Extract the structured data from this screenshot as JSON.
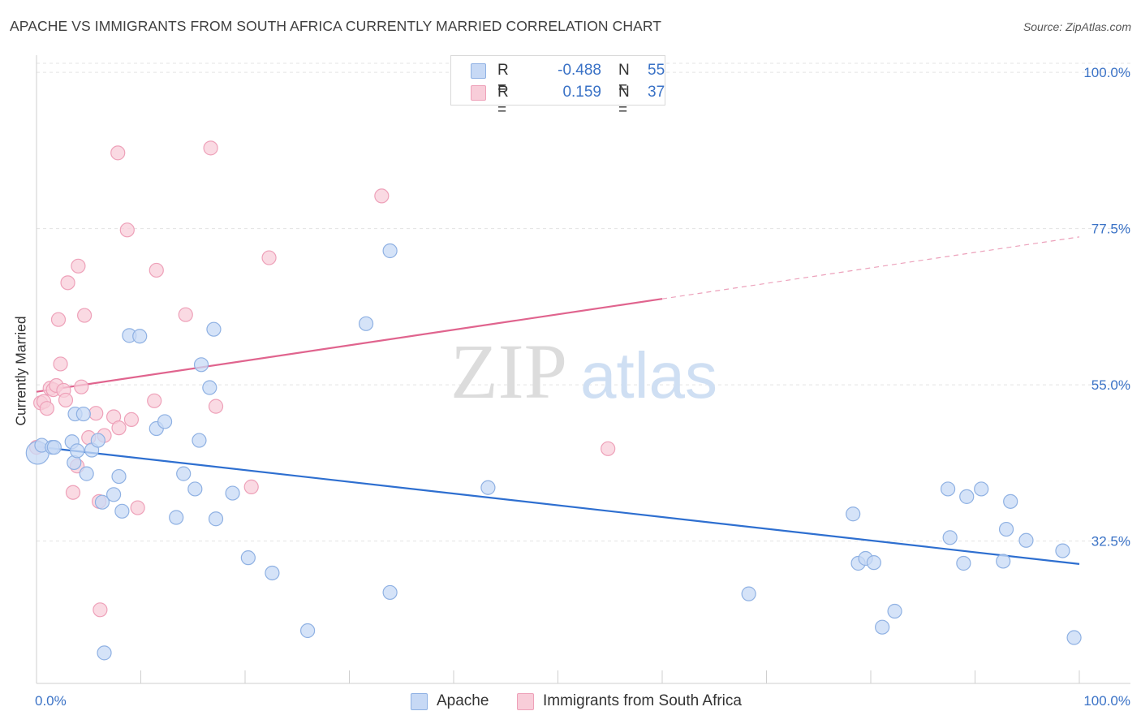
{
  "title": "APACHE VS IMMIGRANTS FROM SOUTH AFRICA CURRENTLY MARRIED CORRELATION CHART",
  "source": "Source: ZipAtlas.com",
  "watermark": {
    "zip": "ZIP",
    "atlas": "atlas"
  },
  "legend": {
    "rows": [
      {
        "r_label": "R =",
        "r_value": "-0.488",
        "n_label": "N =",
        "n_value": "55"
      },
      {
        "r_label": "R =",
        "r_value": "0.159",
        "n_label": "N =",
        "n_value": "37"
      }
    ]
  },
  "bottom_legend": {
    "apache": "Apache",
    "south_africa": "Immigrants from South Africa"
  },
  "colors": {
    "apache_fill": "#c7d9f5",
    "apache_stroke": "#8fb1e3",
    "apache_line": "#2e6fd0",
    "sa_fill": "#f8cdd9",
    "sa_stroke": "#eea1b9",
    "sa_line": "#e0648e",
    "tick_text": "#3a72c6",
    "grid": "#e3e3e3"
  },
  "chart_data": {
    "type": "scatter",
    "title": "APACHE VS IMMIGRANTS FROM SOUTH AFRICA CURRENTLY MARRIED CORRELATION CHART",
    "xlabel": "",
    "ylabel": "Currently Married",
    "xlim": [
      0,
      100
    ],
    "ylim": [
      12.0,
      102.0
    ],
    "x_tick_labels": [
      {
        "value": 0,
        "label": "0.0%"
      },
      {
        "value": 100,
        "label": "100.0%"
      }
    ],
    "y_tick_labels": [
      {
        "value": 100,
        "label": "100.0%"
      },
      {
        "value": 77.5,
        "label": "77.5%"
      },
      {
        "value": 55,
        "label": "55.0%"
      },
      {
        "value": 32.5,
        "label": "32.5%"
      }
    ],
    "grid": true,
    "legend_position": "top-center",
    "series": [
      {
        "name": "Apache",
        "stats": {
          "R": -0.488,
          "N": 55
        },
        "trend": {
          "x": [
            0,
            100
          ],
          "y": [
            46.1,
            29.2
          ],
          "solid_until_x": 100
        },
        "points": [
          [
            0.1,
            45.2
          ],
          [
            0.5,
            46.3
          ],
          [
            1.5,
            46.0
          ],
          [
            1.7,
            46.0
          ],
          [
            3.4,
            46.8
          ],
          [
            3.6,
            43.8
          ],
          [
            3.9,
            45.5
          ],
          [
            3.7,
            50.8
          ],
          [
            4.5,
            50.8
          ],
          [
            4.8,
            42.2
          ],
          [
            5.3,
            45.6
          ],
          [
            5.9,
            47.0
          ],
          [
            6.3,
            38.1
          ],
          [
            7.4,
            39.2
          ],
          [
            7.9,
            41.8
          ],
          [
            8.2,
            36.8
          ],
          [
            8.9,
            62.1
          ],
          [
            9.9,
            62.0
          ],
          [
            11.5,
            48.7
          ],
          [
            12.3,
            49.7
          ],
          [
            13.4,
            35.9
          ],
          [
            14.1,
            42.2
          ],
          [
            15.2,
            40.0
          ],
          [
            15.6,
            47.0
          ],
          [
            15.8,
            57.9
          ],
          [
            16.6,
            54.6
          ],
          [
            17.0,
            63.0
          ],
          [
            17.2,
            35.7
          ],
          [
            18.8,
            39.4
          ],
          [
            20.3,
            30.1
          ],
          [
            22.6,
            27.9
          ],
          [
            26.0,
            19.6
          ],
          [
            31.6,
            63.8
          ],
          [
            33.9,
            74.3
          ],
          [
            33.9,
            25.1
          ],
          [
            43.3,
            40.2
          ],
          [
            68.3,
            24.9
          ],
          [
            78.3,
            36.4
          ],
          [
            78.8,
            29.3
          ],
          [
            79.5,
            30.0
          ],
          [
            80.3,
            29.4
          ],
          [
            81.1,
            20.1
          ],
          [
            82.3,
            22.4
          ],
          [
            87.4,
            40.0
          ],
          [
            87.6,
            33.0
          ],
          [
            88.9,
            29.3
          ],
          [
            89.2,
            38.9
          ],
          [
            90.6,
            40.0
          ],
          [
            92.7,
            29.6
          ],
          [
            93.0,
            34.2
          ],
          [
            93.4,
            38.2
          ],
          [
            94.9,
            32.6
          ],
          [
            98.4,
            31.1
          ],
          [
            99.5,
            18.6
          ],
          [
            6.5,
            16.4
          ]
        ]
      },
      {
        "name": "Immigrants from South Africa",
        "stats": {
          "R": 0.159,
          "N": 37
        },
        "trend": {
          "x": [
            0,
            100
          ],
          "y": [
            54.0,
            76.3
          ],
          "solid_until_x": 60
        },
        "points": [
          [
            0.0,
            46.0
          ],
          [
            0.4,
            52.4
          ],
          [
            0.7,
            52.6
          ],
          [
            1.0,
            51.6
          ],
          [
            1.3,
            54.5
          ],
          [
            1.6,
            54.3
          ],
          [
            1.9,
            54.9
          ],
          [
            2.1,
            64.4
          ],
          [
            2.3,
            58.0
          ],
          [
            2.6,
            54.2
          ],
          [
            2.8,
            52.8
          ],
          [
            3.0,
            69.7
          ],
          [
            3.5,
            39.5
          ],
          [
            3.9,
            43.3
          ],
          [
            4.0,
            72.1
          ],
          [
            4.3,
            54.7
          ],
          [
            4.6,
            65.0
          ],
          [
            5.0,
            47.4
          ],
          [
            5.7,
            50.9
          ],
          [
            6.0,
            38.2
          ],
          [
            6.1,
            22.6
          ],
          [
            6.5,
            47.7
          ],
          [
            7.4,
            50.4
          ],
          [
            7.8,
            88.4
          ],
          [
            7.9,
            48.8
          ],
          [
            8.7,
            77.3
          ],
          [
            9.1,
            50.0
          ],
          [
            9.7,
            37.3
          ],
          [
            11.3,
            52.7
          ],
          [
            11.5,
            71.5
          ],
          [
            14.3,
            65.1
          ],
          [
            16.7,
            89.1
          ],
          [
            17.2,
            51.9
          ],
          [
            20.6,
            40.3
          ],
          [
            22.3,
            73.3
          ],
          [
            33.1,
            82.2
          ],
          [
            54.8,
            45.8
          ]
        ]
      }
    ]
  }
}
